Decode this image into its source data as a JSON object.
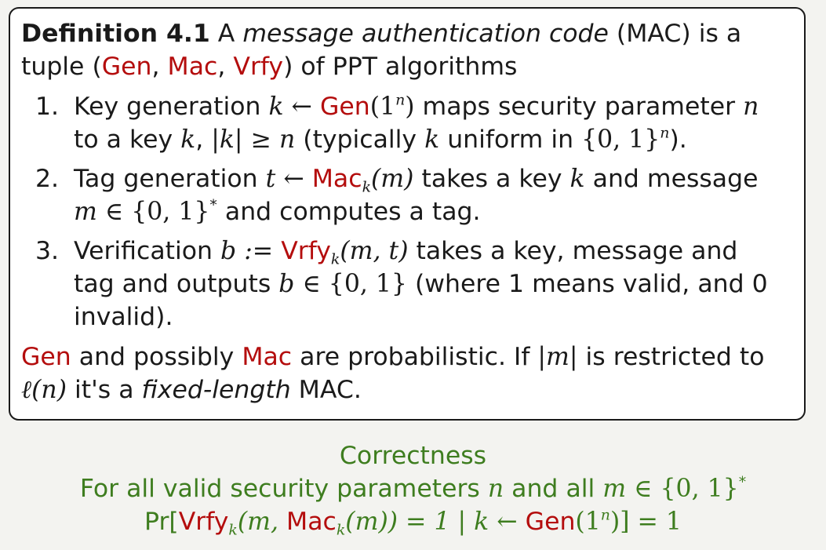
{
  "definition": {
    "head": "Definition 4.1",
    "intro_a": " A ",
    "intro_term": "message authentication code",
    "intro_b": " (MAC) is a",
    "tuple_a": "tuple (",
    "gen": "Gen",
    "comma1": ", ",
    "mac": "Mac",
    "comma2": ", ",
    "vrfy": "Vrfy",
    "tuple_b": ") of PPT algorithms",
    "items": [
      {
        "num": "1.",
        "l1_a": "Key generation ",
        "l1_math1": "k ← ",
        "l1_gen": "Gen",
        "l1_math2": "(1",
        "l1_sup": "n",
        "l1_math3": ")",
        "l1_b": " maps security parameter ",
        "l1_n": "n",
        "l2_a": "to a key ",
        "l2_k": "k",
        "l2_b": ", ",
        "l2_math": "|k| ≥ n",
        "l2_c": " (typically ",
        "l2_k2": "k",
        "l2_d": " uniform in ",
        "l2_set": "{0, 1}",
        "l2_sup": "n",
        "l2_e": ")."
      },
      {
        "num": "2.",
        "l1_a": "Tag generation ",
        "l1_math1": "t ← ",
        "l1_mac": "Mac",
        "l1_sub": "k",
        "l1_math2": "(m)",
        "l1_b": " takes a key ",
        "l1_k": "k",
        "l1_c": " and message",
        "l2_math": "m ∈ ",
        "l2_set": "{0, 1}",
        "l2_sup": "*",
        "l2_a": " and computes a tag."
      },
      {
        "num": "3.",
        "l1_a": "Verification ",
        "l1_math1": "b := ",
        "l1_vrfy": "Vrfy",
        "l1_sub": "k",
        "l1_math2": "(m, t)",
        "l1_b": " takes a key, message and",
        "l2_a": "tag and outputs ",
        "l2_math": "b ∈ ",
        "l2_set": "{0, 1}",
        "l2_b": " (where 1 means valid, and 0",
        "l3": "invalid)."
      }
    ],
    "after": {
      "gen": "Gen",
      "a": " and possibly ",
      "mac": "Mac",
      "b": " are probabilistic. If ",
      "m": "|m|",
      "c": " is restricted to",
      "ell": "ℓ(n)",
      "d": " it's a ",
      "fixed": "fixed-length",
      "e": " MAC."
    }
  },
  "correctness": {
    "title": "Correctness",
    "l2_a": "For all valid security parameters ",
    "l2_n": "n",
    "l2_b": " and all ",
    "l2_math": "m ∈ ",
    "l2_set": "{0, 1}",
    "l2_sup": "*",
    "l3_pr": "Pr[",
    "l3_vrfy": "Vrfy",
    "l3_sub1": "k",
    "l3_m1": "(m, ",
    "l3_mac": "Mac",
    "l3_sub2": "k",
    "l3_m2": "(m)) = 1 | k ← ",
    "l3_gen": "Gen",
    "l3_m3": "(1",
    "l3_sup": "n",
    "l3_m4": ")] = 1"
  },
  "colors": {
    "accent_red": "#b40d0d",
    "accent_green": "#3e7d1f"
  }
}
